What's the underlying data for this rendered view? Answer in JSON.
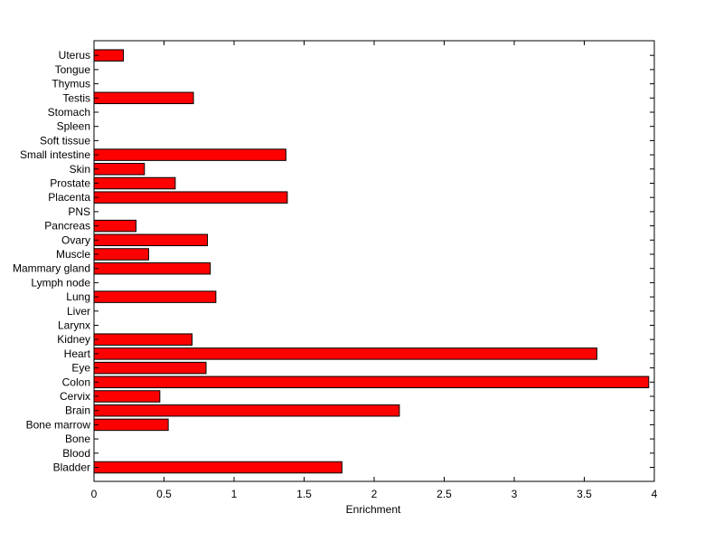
{
  "chart_data": {
    "type": "bar",
    "orientation": "horizontal",
    "categories": [
      "Bladder",
      "Blood",
      "Bone",
      "Bone marrow",
      "Brain",
      "Cervix",
      "Colon",
      "Eye",
      "Heart",
      "Kidney",
      "Larynx",
      "Liver",
      "Lung",
      "Lymph node",
      "Mammary gland",
      "Muscle",
      "Ovary",
      "Pancreas",
      "PNS",
      "Placenta",
      "Prostate",
      "Skin",
      "Small intestine",
      "Soft tissue",
      "Spleen",
      "Stomach",
      "Testis",
      "Thymus",
      "Tongue",
      "Uterus"
    ],
    "values": [
      1.77,
      0,
      0,
      0.53,
      2.18,
      0.47,
      3.96,
      0.8,
      3.59,
      0.7,
      0,
      0,
      0.87,
      0,
      0.83,
      0.39,
      0.81,
      0.3,
      0,
      1.38,
      0.58,
      0.36,
      1.37,
      0,
      0,
      0,
      0.71,
      0,
      0,
      0.21
    ],
    "xlabel": "Enrichment",
    "ylabel": "",
    "title": "",
    "xlim": [
      0,
      4
    ],
    "xticks": [
      "0",
      "0.5",
      "1",
      "1.5",
      "2",
      "2.5",
      "3",
      "3.5",
      "4"
    ],
    "grid": false,
    "bar_color": "#ff0000",
    "bar_edge_color": "#000000"
  }
}
